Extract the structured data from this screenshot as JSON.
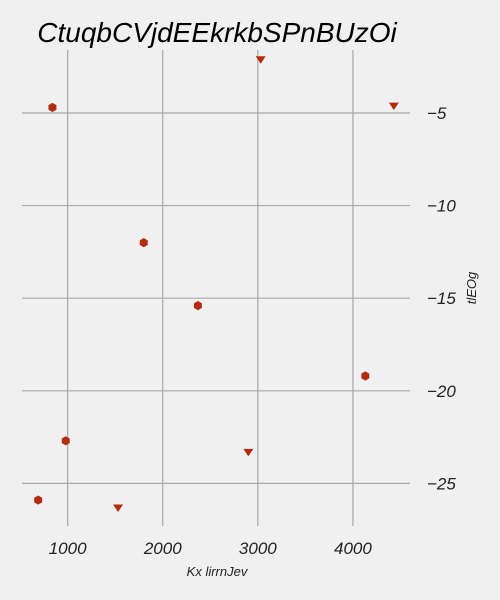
{
  "chart_data": {
    "type": "scatter",
    "title": "CtuqbCVjdEEkrkbSPnBUzOi",
    "xlabel": "Kx lirrnJev",
    "ylabel": "tlEOg",
    "xlim": [
      520,
      4600
    ],
    "ylim": [
      -27.3,
      -1.6
    ],
    "grid": true,
    "y_axis_side": "right",
    "color": "#b52b10",
    "xticks": [
      1000,
      2000,
      3000,
      4000
    ],
    "xtick_labels": [
      "1000",
      "2000",
      "3000",
      "4000"
    ],
    "yticks": [
      -5,
      -10,
      -15,
      -20,
      -25
    ],
    "ytick_labels": [
      "−5",
      "−10",
      "−15",
      "−20",
      "−25"
    ],
    "series": [
      {
        "marker": "hexagon",
        "x": [
          840,
          1800,
          2370,
          4130,
          980,
          690
        ],
        "y": [
          -4.7,
          -12.0,
          -15.4,
          -19.2,
          -22.7,
          -25.9
        ]
      },
      {
        "marker": "triangle-down",
        "x": [
          3030,
          4430,
          2900,
          1530
        ],
        "y": [
          -2.1,
          -4.6,
          -23.3,
          -26.3
        ]
      }
    ]
  }
}
